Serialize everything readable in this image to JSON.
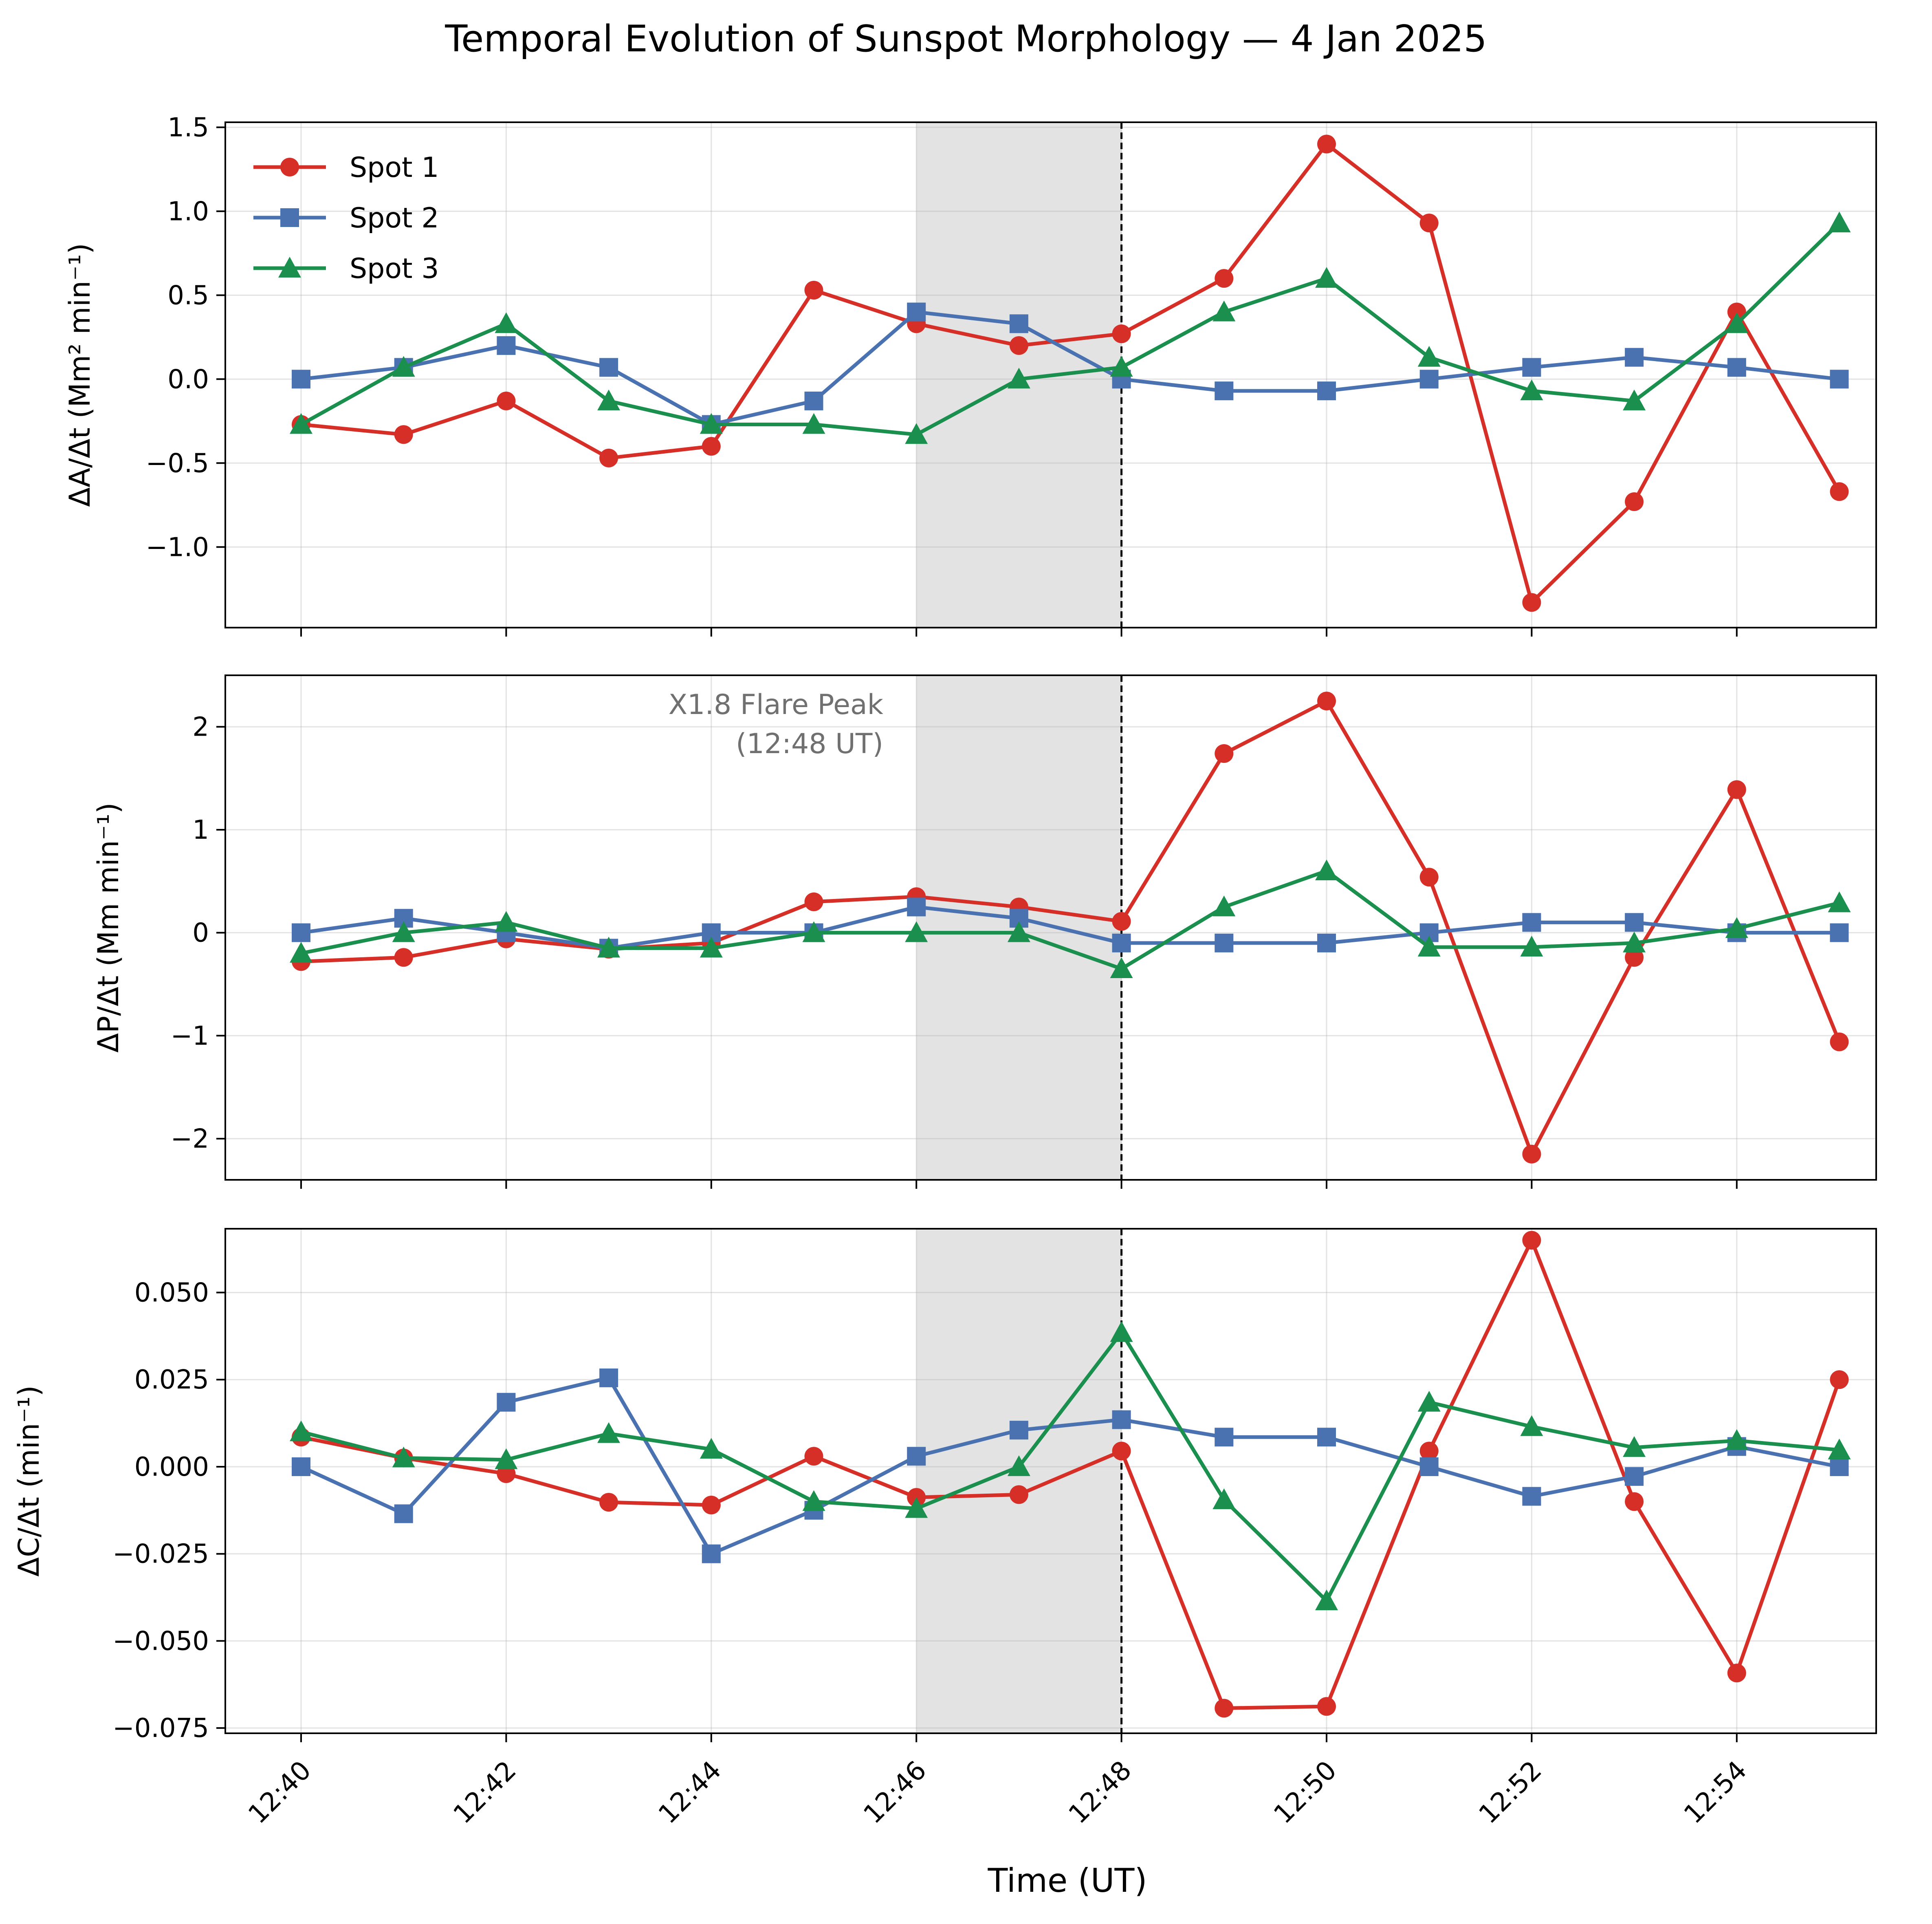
{
  "chart_data": {
    "type": "line",
    "title": "Temporal Evolution of Sunspot Morphology — 4 Jan 2025",
    "xlabel": "Time (UT)",
    "x": [
      "12:40",
      "12:41",
      "12:42",
      "12:43",
      "12:44",
      "12:45",
      "12:46",
      "12:47",
      "12:48",
      "12:49",
      "12:50",
      "12:51",
      "12:52",
      "12:53",
      "12:54",
      "12:55"
    ],
    "xtick_labels": [
      "12:40",
      "12:42",
      "12:44",
      "12:46",
      "12:48",
      "12:50",
      "12:52",
      "12:54"
    ],
    "shaded_interval": [
      "12:46",
      "12:48"
    ],
    "flare_line": "12:48",
    "annotation": {
      "line1": "X1.8 Flare Peak",
      "line2": "(12:48 UT)"
    },
    "legend": {
      "position": "top-left",
      "entries": [
        "Spot 1",
        "Spot 2",
        "Spot 3"
      ]
    },
    "colors": {
      "spot1": "#d62f27",
      "spot2": "#4a72b0",
      "spot3": "#1a8f4e",
      "shade": "#e3e3e3",
      "annotation": "#707070"
    },
    "panels": [
      {
        "ylabel": "ΔA/Δt  (Mm² min⁻¹)",
        "ylim": [
          -1.48,
          1.53
        ],
        "yticks": [
          1.5,
          1.0,
          0.5,
          0.0,
          -0.5,
          -1.0
        ],
        "ytick_labels": [
          "1.5",
          "1.0",
          "0.5",
          "0.0",
          "−0.5",
          "−1.0"
        ],
        "series": [
          {
            "name": "Spot 1",
            "marker": "circle",
            "values": [
              -0.27,
              -0.33,
              -0.13,
              -0.47,
              -0.4,
              0.53,
              0.33,
              0.2,
              0.27,
              0.6,
              1.4,
              0.93,
              -1.33,
              -0.73,
              0.4,
              -0.67
            ]
          },
          {
            "name": "Spot 2",
            "marker": "square",
            "values": [
              0.0,
              0.07,
              0.2,
              0.07,
              -0.27,
              -0.13,
              0.4,
              0.33,
              0.0,
              -0.07,
              -0.07,
              0.0,
              0.07,
              0.13,
              0.07,
              0.0
            ]
          },
          {
            "name": "Spot 3",
            "marker": "triangle",
            "values": [
              -0.27,
              0.07,
              0.33,
              -0.13,
              -0.27,
              -0.27,
              -0.33,
              0.0,
              0.07,
              0.4,
              0.6,
              0.13,
              -0.07,
              -0.13,
              0.33,
              0.93
            ]
          }
        ]
      },
      {
        "ylabel": "ΔP/Δt  (Mm min⁻¹)",
        "ylim": [
          -2.4,
          2.5
        ],
        "yticks": [
          2,
          1,
          0,
          -1,
          -2
        ],
        "ytick_labels": [
          "2",
          "1",
          "0",
          "−1",
          "−2"
        ],
        "series": [
          {
            "name": "Spot 1",
            "marker": "circle",
            "values": [
              -0.28,
              -0.24,
              -0.06,
              -0.16,
              -0.1,
              0.3,
              0.35,
              0.25,
              0.11,
              1.74,
              2.25,
              0.54,
              -2.15,
              -0.24,
              1.39,
              -1.06
            ]
          },
          {
            "name": "Spot 2",
            "marker": "square",
            "values": [
              0.0,
              0.14,
              0.0,
              -0.15,
              0.0,
              0.0,
              0.25,
              0.14,
              -0.1,
              -0.1,
              -0.1,
              0.0,
              0.1,
              0.1,
              0.0,
              0.0
            ]
          },
          {
            "name": "Spot 3",
            "marker": "triangle",
            "values": [
              -0.2,
              0.0,
              0.1,
              -0.15,
              -0.15,
              0.0,
              0.0,
              0.0,
              -0.35,
              0.25,
              0.6,
              -0.14,
              -0.14,
              -0.1,
              0.04,
              0.29
            ]
          }
        ]
      },
      {
        "ylabel": "ΔC/Δt  (min⁻¹)",
        "ylim": [
          -0.0765,
          0.0683
        ],
        "yticks": [
          0.05,
          0.025,
          0.0,
          -0.025,
          -0.05,
          -0.075
        ],
        "ytick_labels": [
          "0.050",
          "0.025",
          "0.000",
          "−0.025",
          "−0.050",
          "−0.075"
        ],
        "series": [
          {
            "name": "Spot 1",
            "marker": "circle",
            "values": [
              0.0085,
              0.0025,
              -0.002,
              -0.0102,
              -0.011,
              0.003,
              -0.0088,
              -0.008,
              0.0045,
              -0.0693,
              -0.0688,
              0.0045,
              0.065,
              -0.01,
              -0.0592,
              0.025
            ]
          },
          {
            "name": "Spot 2",
            "marker": "square",
            "values": [
              0.0,
              -0.0135,
              0.0185,
              0.0255,
              -0.025,
              -0.0125,
              0.003,
              0.0105,
              0.0135,
              0.0085,
              0.0085,
              0.0,
              -0.0085,
              -0.0028,
              0.0058,
              0.0
            ]
          },
          {
            "name": "Spot 3",
            "marker": "triangle",
            "values": [
              0.01,
              0.0025,
              0.002,
              0.0095,
              0.005,
              -0.01,
              -0.012,
              0.0,
              0.0385,
              -0.0095,
              -0.0385,
              0.0185,
              0.0115,
              0.0055,
              0.0075,
              0.0048
            ]
          }
        ]
      }
    ]
  }
}
